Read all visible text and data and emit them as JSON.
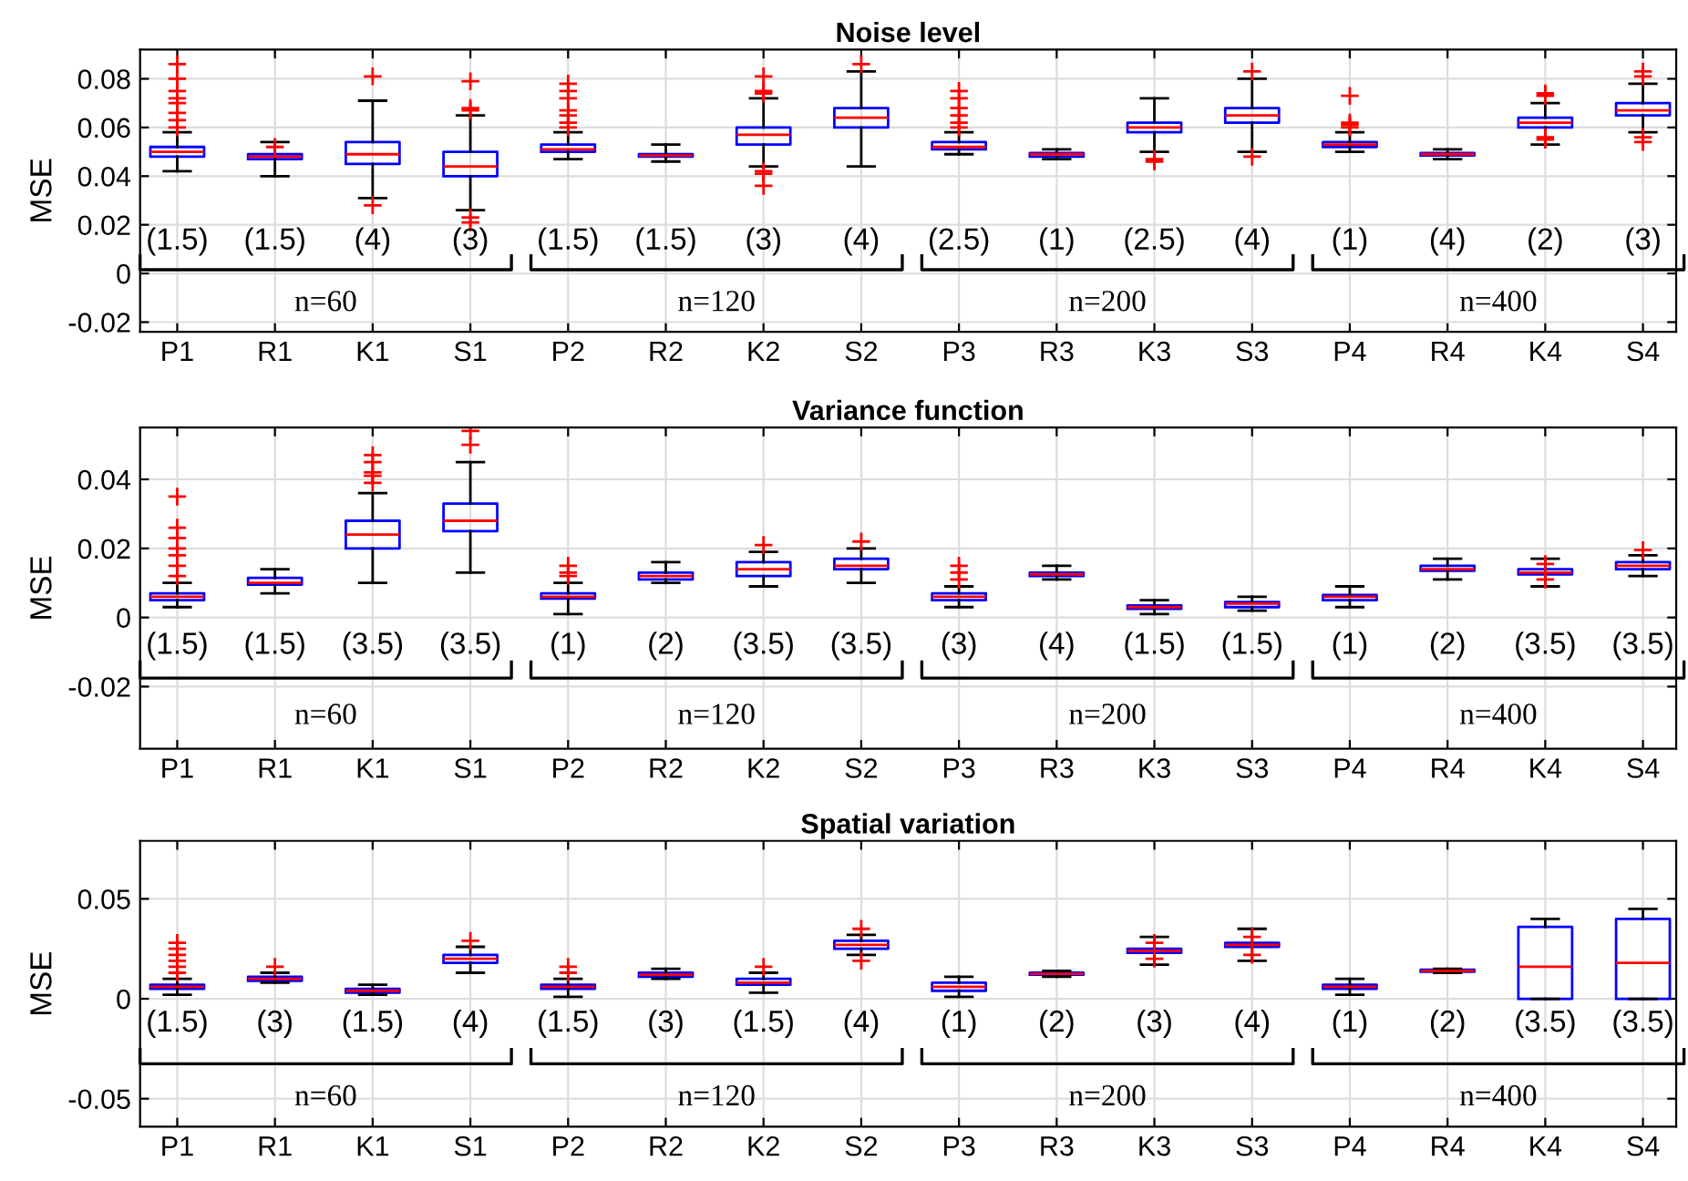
{
  "chart_data": [
    {
      "type": "box",
      "title": "Noise level",
      "ylabel": "MSE",
      "categories": [
        "P1",
        "R1",
        "K1",
        "S1",
        "P2",
        "R2",
        "K2",
        "S2",
        "P3",
        "R3",
        "K3",
        "S3",
        "P4",
        "R4",
        "K4",
        "S4"
      ],
      "ylim": [
        -0.024,
        0.092
      ],
      "yticks": [
        -0.02,
        0,
        0.02,
        0.04,
        0.06,
        0.08
      ],
      "grid": true,
      "marker": "cross",
      "series": [
        {
          "color": "#0000ff",
          "boxes": [
            {
              "low": 0.042,
              "q1": 0.048,
              "median": 0.05,
              "q3": 0.052,
              "high": 0.058,
              "outliers": [
                0.06,
                0.063,
                0.066,
                0.07,
                0.072,
                0.075,
                0.08,
                0.086
              ]
            },
            {
              "low": 0.04,
              "q1": 0.047,
              "median": 0.048,
              "q3": 0.049,
              "high": 0.054,
              "outliers": [
                0.052
              ]
            },
            {
              "low": 0.031,
              "q1": 0.045,
              "median": 0.049,
              "q3": 0.054,
              "high": 0.071,
              "outliers": [
                0.028,
                0.081
              ]
            },
            {
              "low": 0.026,
              "q1": 0.04,
              "median": 0.044,
              "q3": 0.05,
              "high": 0.065,
              "outliers": [
                0.021,
                0.023,
                0.067,
                0.068,
                0.079
              ]
            },
            {
              "low": 0.047,
              "q1": 0.05,
              "median": 0.051,
              "q3": 0.053,
              "high": 0.058,
              "outliers": [
                0.06,
                0.062,
                0.065,
                0.067,
                0.072,
                0.075,
                0.078
              ]
            },
            {
              "low": 0.046,
              "q1": 0.048,
              "median": 0.0485,
              "q3": 0.049,
              "high": 0.053
            },
            {
              "low": 0.044,
              "q1": 0.053,
              "median": 0.057,
              "q3": 0.06,
              "high": 0.072,
              "outliers": [
                0.036,
                0.041,
                0.042,
                0.074,
                0.075,
                0.081
              ]
            },
            {
              "low": 0.044,
              "q1": 0.06,
              "median": 0.064,
              "q3": 0.068,
              "high": 0.083,
              "outliers": [
                0.086
              ]
            },
            {
              "low": 0.049,
              "q1": 0.051,
              "median": 0.052,
              "q3": 0.054,
              "high": 0.058,
              "outliers": [
                0.06,
                0.062,
                0.065,
                0.068,
                0.072,
                0.075
              ]
            },
            {
              "low": 0.047,
              "q1": 0.048,
              "median": 0.049,
              "q3": 0.0495,
              "high": 0.051
            },
            {
              "low": 0.05,
              "q1": 0.058,
              "median": 0.06,
              "q3": 0.062,
              "high": 0.072,
              "outliers": [
                0.046,
                0.047
              ]
            },
            {
              "low": 0.05,
              "q1": 0.062,
              "median": 0.065,
              "q3": 0.068,
              "high": 0.08,
              "outliers": [
                0.048,
                0.083
              ]
            },
            {
              "low": 0.05,
              "q1": 0.052,
              "median": 0.053,
              "q3": 0.054,
              "high": 0.058,
              "outliers": [
                0.06,
                0.061,
                0.062,
                0.073
              ]
            },
            {
              "low": 0.047,
              "q1": 0.0485,
              "median": 0.049,
              "q3": 0.0495,
              "high": 0.051
            },
            {
              "low": 0.053,
              "q1": 0.06,
              "median": 0.062,
              "q3": 0.064,
              "high": 0.07,
              "outliers": [
                0.055,
                0.056,
                0.073,
                0.074
              ]
            },
            {
              "low": 0.058,
              "q1": 0.065,
              "median": 0.067,
              "q3": 0.07,
              "high": 0.078,
              "outliers": [
                0.054,
                0.056,
                0.081,
                0.083
              ]
            }
          ]
        }
      ],
      "annotations": [
        "(1.5)",
        "(1.5)",
        "(4)",
        "(3)",
        "(1.5)",
        "(1.5)",
        "(3)",
        "(4)",
        "(2.5)",
        "(1)",
        "(2.5)",
        "(4)",
        "(1)",
        "(4)",
        "(2)",
        "(3)",
        "n=60",
        "n=120",
        "n=200",
        "n=400"
      ]
    },
    {
      "type": "box",
      "title": "Variance function",
      "ylabel": "MSE",
      "categories": [
        "P1",
        "R1",
        "K1",
        "S1",
        "P2",
        "R2",
        "K2",
        "S2",
        "P3",
        "R3",
        "K3",
        "S3",
        "P4",
        "R4",
        "K4",
        "S4"
      ],
      "ylim": [
        -0.038,
        0.055
      ],
      "yticks": [
        -0.02,
        0,
        0.02,
        0.04
      ],
      "grid": true,
      "marker": "cross",
      "series": [
        {
          "color": "#0000ff",
          "boxes": [
            {
              "low": 0.003,
              "q1": 0.005,
              "median": 0.006,
              "q3": 0.007,
              "high": 0.01,
              "outliers": [
                0.012,
                0.015,
                0.018,
                0.02,
                0.023,
                0.026,
                0.035
              ]
            },
            {
              "low": 0.007,
              "q1": 0.0095,
              "median": 0.01,
              "q3": 0.0115,
              "high": 0.014
            },
            {
              "low": 0.01,
              "q1": 0.02,
              "median": 0.024,
              "q3": 0.028,
              "high": 0.036,
              "outliers": [
                0.039,
                0.041,
                0.042,
                0.045,
                0.047
              ]
            },
            {
              "low": 0.013,
              "q1": 0.025,
              "median": 0.028,
              "q3": 0.033,
              "high": 0.045,
              "outliers": [
                0.05,
                0.054
              ]
            },
            {
              "low": 0.001,
              "q1": 0.0055,
              "median": 0.006,
              "q3": 0.007,
              "high": 0.01,
              "outliers": [
                0.012,
                0.013,
                0.015
              ]
            },
            {
              "low": 0.01,
              "q1": 0.011,
              "median": 0.012,
              "q3": 0.013,
              "high": 0.016
            },
            {
              "low": 0.009,
              "q1": 0.012,
              "median": 0.014,
              "q3": 0.016,
              "high": 0.019,
              "outliers": [
                0.021
              ]
            },
            {
              "low": 0.01,
              "q1": 0.014,
              "median": 0.015,
              "q3": 0.017,
              "high": 0.02,
              "outliers": [
                0.022
              ]
            },
            {
              "low": 0.003,
              "q1": 0.005,
              "median": 0.006,
              "q3": 0.007,
              "high": 0.009,
              "outliers": [
                0.011,
                0.013,
                0.015
              ]
            },
            {
              "low": 0.011,
              "q1": 0.012,
              "median": 0.0125,
              "q3": 0.013,
              "high": 0.015
            },
            {
              "low": 0.001,
              "q1": 0.0025,
              "median": 0.003,
              "q3": 0.0035,
              "high": 0.005
            },
            {
              "low": 0.002,
              "q1": 0.003,
              "median": 0.004,
              "q3": 0.0045,
              "high": 0.006
            },
            {
              "low": 0.003,
              "q1": 0.005,
              "median": 0.006,
              "q3": 0.0065,
              "high": 0.009
            },
            {
              "low": 0.011,
              "q1": 0.0135,
              "median": 0.014,
              "q3": 0.015,
              "high": 0.017
            },
            {
              "low": 0.009,
              "q1": 0.0125,
              "median": 0.013,
              "q3": 0.014,
              "high": 0.017,
              "outliers": [
                0.011,
                0.0155
              ]
            },
            {
              "low": 0.012,
              "q1": 0.014,
              "median": 0.015,
              "q3": 0.016,
              "high": 0.018,
              "outliers": [
                0.0195
              ]
            }
          ]
        }
      ],
      "annotations": [
        "(1.5)",
        "(1.5)",
        "(3.5)",
        "(3.5)",
        "(1)",
        "(2)",
        "(3.5)",
        "(3.5)",
        "(3)",
        "(4)",
        "(1.5)",
        "(1.5)",
        "(1)",
        "(2)",
        "(3.5)",
        "(3.5)",
        "n=60",
        "n=120",
        "n=200",
        "n=400"
      ]
    },
    {
      "type": "box",
      "title": "Spatial variation",
      "ylabel": "MSE",
      "categories": [
        "P1",
        "R1",
        "K1",
        "S1",
        "P2",
        "R2",
        "K2",
        "S2",
        "P3",
        "R3",
        "K3",
        "S3",
        "P4",
        "R4",
        "K4",
        "S4"
      ],
      "ylim": [
        -0.064,
        0.079
      ],
      "yticks": [
        -0.05,
        0,
        0.05
      ],
      "grid": true,
      "marker": "cross",
      "series": [
        {
          "color": "#0000ff",
          "boxes": [
            {
              "low": 0.002,
              "q1": 0.005,
              "median": 0.006,
              "q3": 0.007,
              "high": 0.01,
              "outliers": [
                0.013,
                0.016,
                0.019,
                0.022,
                0.025,
                0.028
              ]
            },
            {
              "low": 0.008,
              "q1": 0.009,
              "median": 0.01,
              "q3": 0.011,
              "high": 0.013,
              "outliers": [
                0.016
              ]
            },
            {
              "low": 0.002,
              "q1": 0.003,
              "median": 0.004,
              "q3": 0.005,
              "high": 0.007
            },
            {
              "low": 0.013,
              "q1": 0.018,
              "median": 0.02,
              "q3": 0.022,
              "high": 0.026,
              "outliers": [
                0.029
              ]
            },
            {
              "low": 0.001,
              "q1": 0.005,
              "median": 0.006,
              "q3": 0.007,
              "high": 0.01,
              "outliers": [
                0.013,
                0.016
              ]
            },
            {
              "low": 0.01,
              "q1": 0.011,
              "median": 0.012,
              "q3": 0.013,
              "high": 0.015
            },
            {
              "low": 0.003,
              "q1": 0.007,
              "median": 0.008,
              "q3": 0.01,
              "high": 0.013,
              "outliers": [
                0.016
              ]
            },
            {
              "low": 0.022,
              "q1": 0.025,
              "median": 0.027,
              "q3": 0.029,
              "high": 0.032,
              "outliers": [
                0.019,
                0.035
              ]
            },
            {
              "low": 0.001,
              "q1": 0.004,
              "median": 0.006,
              "q3": 0.008,
              "high": 0.011
            },
            {
              "low": 0.011,
              "q1": 0.012,
              "median": 0.0125,
              "q3": 0.013,
              "high": 0.014
            },
            {
              "low": 0.017,
              "q1": 0.023,
              "median": 0.024,
              "q3": 0.025,
              "high": 0.031,
              "outliers": [
                0.02,
                0.028
              ]
            },
            {
              "low": 0.019,
              "q1": 0.026,
              "median": 0.027,
              "q3": 0.028,
              "high": 0.035,
              "outliers": [
                0.022,
                0.031
              ]
            },
            {
              "low": 0.002,
              "q1": 0.005,
              "median": 0.006,
              "q3": 0.007,
              "high": 0.01
            },
            {
              "low": 0.013,
              "q1": 0.0135,
              "median": 0.014,
              "q3": 0.0145,
              "high": 0.015
            },
            {
              "low": 0.0,
              "q1": 0.0,
              "median": 0.016,
              "q3": 0.036,
              "high": 0.04
            },
            {
              "low": 0.0,
              "q1": 0.0,
              "median": 0.018,
              "q3": 0.04,
              "high": 0.045
            }
          ]
        }
      ],
      "annotations": [
        "(1.5)",
        "(3)",
        "(1.5)",
        "(4)",
        "(1.5)",
        "(3)",
        "(1.5)",
        "(4)",
        "(1)",
        "(2)",
        "(3)",
        "(4)",
        "(1)",
        "(2)",
        "(3.5)",
        "(3.5)",
        "n=60",
        "n=120",
        "n=200",
        "n=400"
      ]
    }
  ]
}
